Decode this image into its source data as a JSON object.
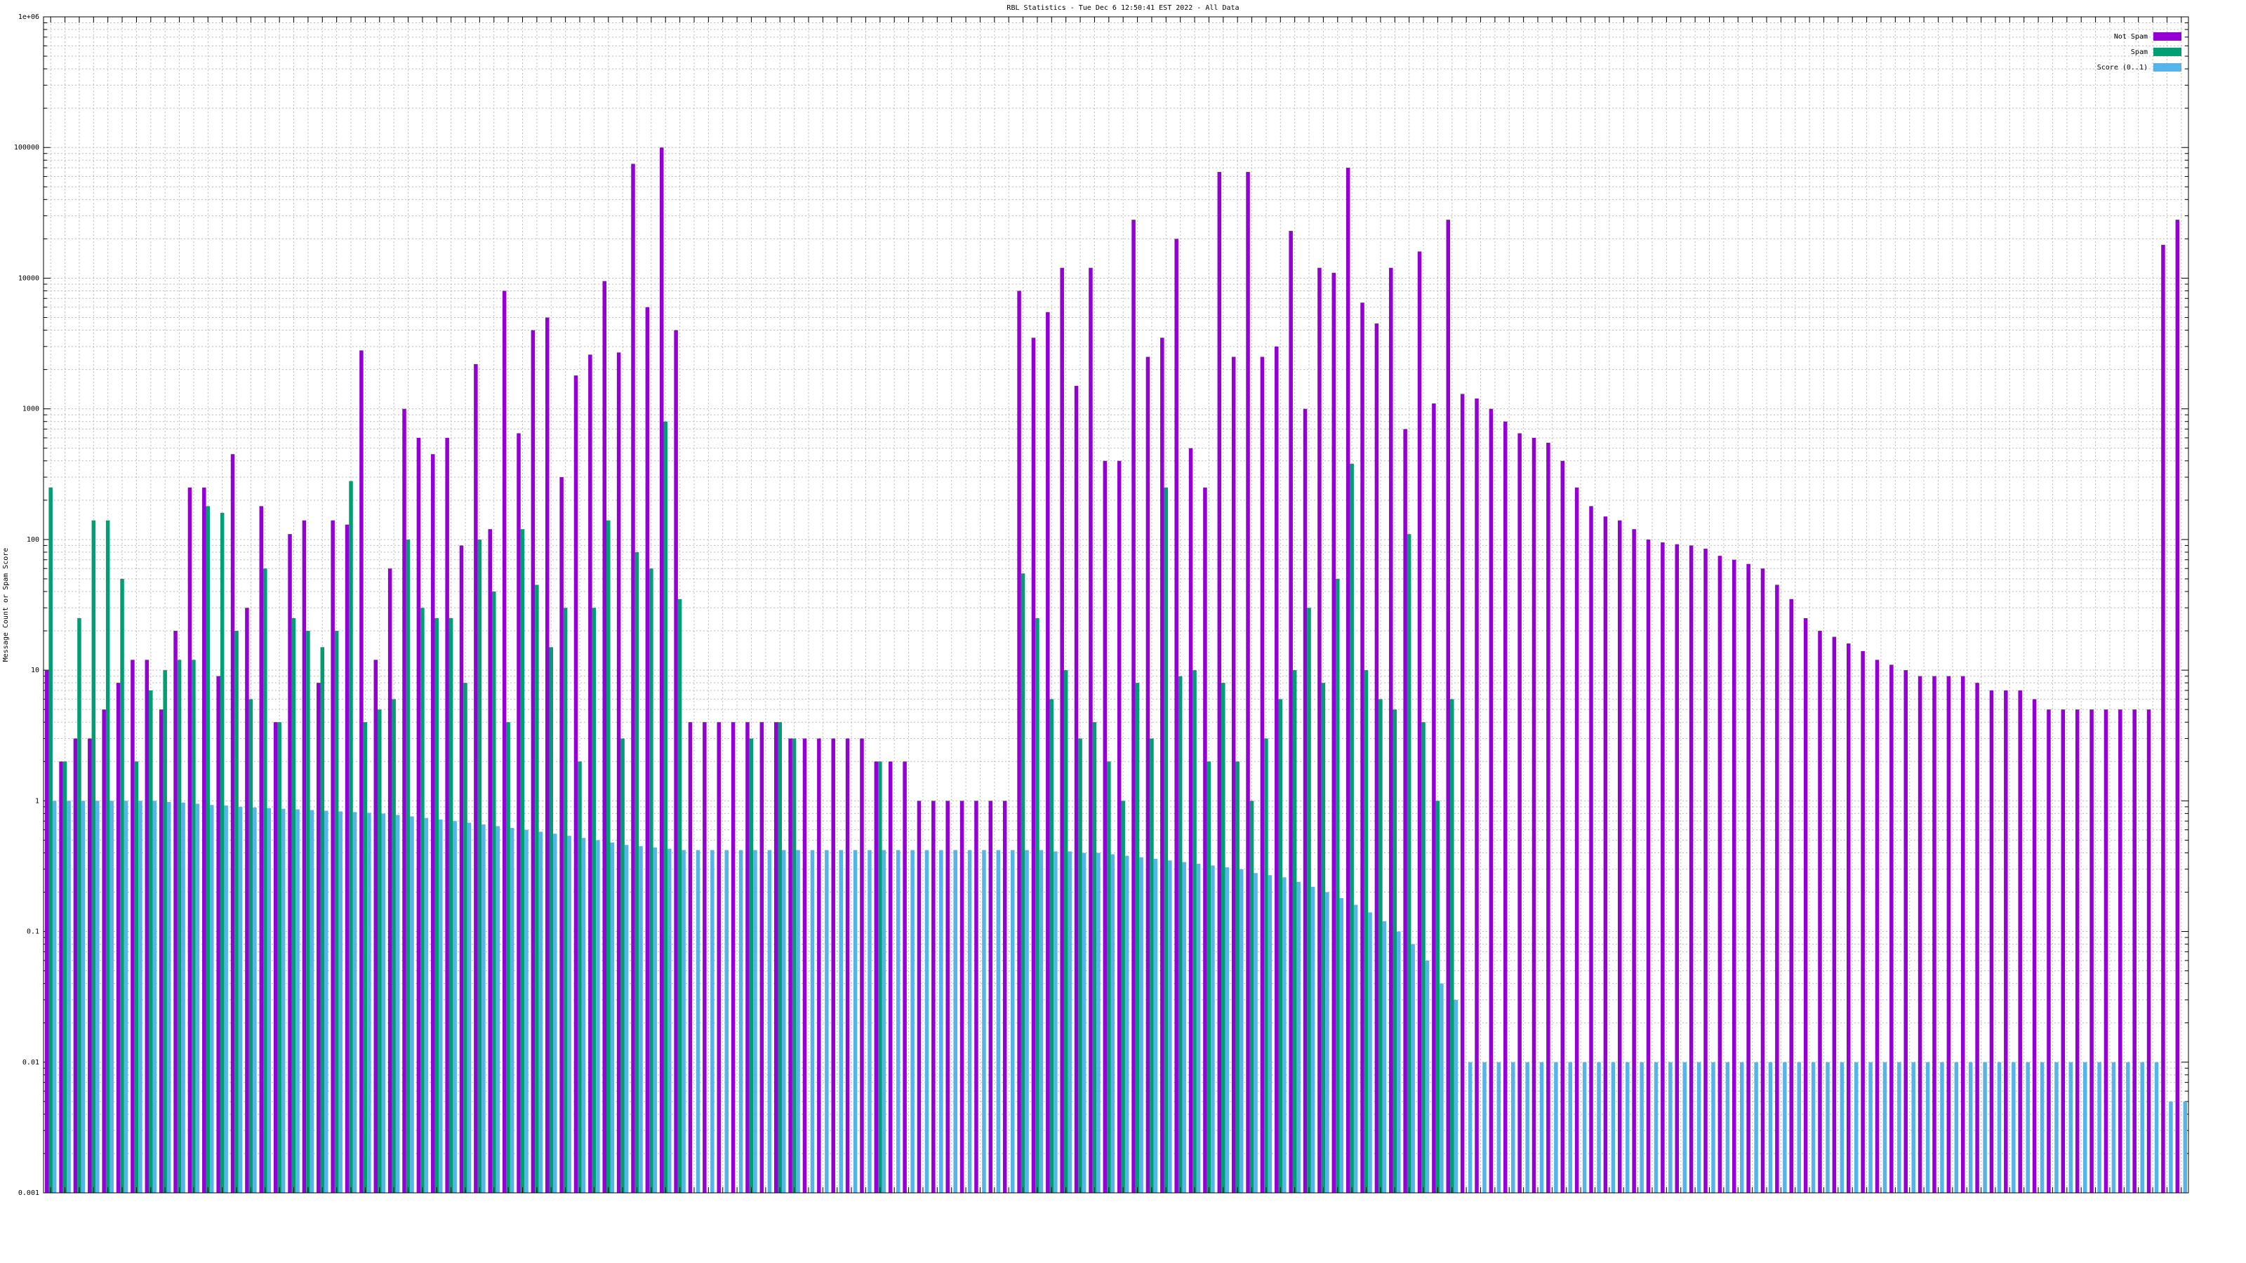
{
  "chart_data": {
    "type": "bar",
    "log_scale": true,
    "grid": true,
    "legend": "upper right",
    "title": "RBL Statistics - Tue Dec  6 12:50:41 EST 2022 - All Data",
    "y_label": "Message Count or Spam Score",
    "ylim": [
      0.001,
      1000000
    ],
    "yticks": [
      0.001,
      0.01,
      0.1,
      1,
      10,
      100,
      1000,
      10000,
      100000,
      {
        "value": 1000000,
        "label": "1e+06"
      }
    ],
    "categories": [
      null,
      null,
      null,
      null,
      null,
      null,
      null,
      null,
      null,
      null,
      null,
      null,
      null,
      null,
      null,
      null,
      null,
      null,
      null,
      null,
      null,
      null,
      null,
      null,
      null,
      null,
      null,
      null,
      null,
      null,
      null,
      null,
      null,
      null,
      null,
      null,
      null,
      null,
      null,
      null,
      null,
      null,
      null,
      null,
      null,
      null,
      null,
      null,
      null,
      null,
      null,
      null,
      null,
      null,
      null,
      null,
      null,
      null,
      null,
      null,
      null,
      null,
      null,
      null,
      null,
      null,
      null,
      null,
      null,
      null,
      null,
      null,
      null,
      null,
      null,
      null,
      null,
      null,
      null,
      null,
      null,
      null,
      null,
      null,
      null,
      null,
      null,
      null,
      null,
      null,
      null,
      null,
      null,
      null,
      null,
      null,
      null,
      null,
      null,
      null,
      null,
      null,
      null,
      null,
      null,
      null,
      null,
      null,
      null,
      null,
      null,
      null,
      null,
      null,
      null,
      null,
      null,
      null,
      null,
      null,
      null,
      null,
      null,
      null,
      null,
      null,
      null,
      null,
      null,
      null,
      null,
      null,
      null,
      null,
      null,
      null,
      null,
      null,
      null,
      null,
      null,
      null,
      null,
      null,
      null,
      null,
      null,
      null,
      null,
      null
    ],
    "series": [
      {
        "name": "Not Spam",
        "color": "#9400d3",
        "values": [
          10,
          2,
          3,
          3,
          5,
          8,
          12,
          12,
          5,
          20,
          250,
          250,
          9,
          450,
          30,
          180,
          4,
          110,
          140,
          8,
          140,
          130,
          2800,
          12,
          60,
          1000,
          600,
          450,
          600,
          90,
          2200,
          120,
          8000,
          650,
          4000,
          5000,
          300,
          1800,
          2600,
          9500,
          2700,
          75000,
          6000,
          100000,
          4000,
          4,
          4,
          4,
          4,
          4,
          4,
          4,
          3,
          3,
          3,
          3,
          3,
          3,
          2,
          2,
          2,
          1,
          1,
          1,
          1,
          1,
          1,
          1,
          8000,
          3500,
          5500,
          12000,
          1500,
          12000,
          400,
          400,
          28000,
          2500,
          3500,
          20000,
          500,
          250,
          65000,
          2500,
          65000,
          2500,
          3000,
          23000,
          1000,
          12000,
          11000,
          70000,
          6500,
          4500,
          12000,
          700,
          16000,
          1100,
          28000,
          1300,
          1200,
          1000,
          800,
          650,
          600,
          550,
          400,
          250,
          180,
          150,
          140,
          120,
          100,
          95,
          92,
          90,
          85,
          75,
          70,
          65,
          60,
          45,
          35,
          25,
          20,
          18,
          16,
          14,
          12,
          11,
          10,
          9,
          9,
          9,
          9,
          8,
          7,
          7,
          7,
          6,
          5,
          5,
          5,
          5,
          5,
          5,
          5,
          5,
          18000,
          28000
        ]
      },
      {
        "name": "Spam",
        "color": "#009e73",
        "values": [
          250,
          2,
          25,
          140,
          140,
          50,
          2,
          7,
          10,
          12,
          12,
          180,
          160,
          20,
          6,
          60,
          4,
          25,
          20,
          15,
          20,
          280,
          4,
          5,
          6,
          100,
          30,
          25,
          25,
          8,
          100,
          40,
          4,
          120,
          45,
          15,
          30,
          2,
          30,
          140,
          3,
          80,
          60,
          800,
          35,
          null,
          null,
          null,
          null,
          3,
          null,
          4,
          3,
          null,
          null,
          null,
          null,
          null,
          2,
          null,
          null,
          null,
          null,
          null,
          null,
          null,
          null,
          null,
          55,
          25,
          6,
          10,
          3,
          4,
          2,
          1,
          8,
          3,
          250,
          9,
          10,
          2,
          8,
          2,
          1,
          3,
          6,
          10,
          30,
          8,
          50,
          380,
          10,
          6,
          5,
          110,
          4,
          1,
          6,
          null,
          null,
          null,
          null,
          null,
          null,
          null,
          null,
          null,
          null,
          null,
          null,
          null,
          null,
          null,
          null,
          null,
          null,
          null,
          null,
          null,
          null,
          null,
          null,
          null,
          null,
          null,
          null,
          null,
          null,
          null,
          null,
          null,
          null,
          null,
          null,
          null,
          null,
          null,
          null,
          null,
          null,
          null,
          null,
          null,
          null,
          null,
          null,
          null,
          null,
          null
        ]
      },
      {
        "name": "Score (0..1)",
        "color": "#56b4e9",
        "values": [
          1,
          1,
          1,
          1,
          1,
          1,
          1,
          1,
          0.98,
          0.97,
          0.95,
          0.93,
          0.92,
          0.9,
          0.89,
          0.88,
          0.87,
          0.86,
          0.85,
          0.84,
          0.83,
          0.82,
          0.81,
          0.8,
          0.78,
          0.76,
          0.74,
          0.72,
          0.7,
          0.68,
          0.66,
          0.64,
          0.62,
          0.6,
          0.58,
          0.56,
          0.54,
          0.52,
          0.5,
          0.48,
          0.46,
          0.45,
          0.44,
          0.43,
          0.42,
          0.42,
          0.42,
          0.42,
          0.42,
          0.42,
          0.42,
          0.42,
          0.42,
          0.42,
          0.42,
          0.42,
          0.42,
          0.42,
          0.42,
          0.42,
          0.42,
          0.42,
          0.42,
          0.42,
          0.42,
          0.42,
          0.42,
          0.42,
          0.42,
          0.42,
          0.41,
          0.41,
          0.4,
          0.4,
          0.39,
          0.38,
          0.37,
          0.36,
          0.35,
          0.34,
          0.33,
          0.32,
          0.31,
          0.3,
          0.28,
          0.27,
          0.26,
          0.24,
          0.22,
          0.2,
          0.18,
          0.16,
          0.14,
          0.12,
          0.1,
          0.08,
          0.06,
          0.04,
          0.03,
          0.01,
          0.01,
          0.01,
          0.01,
          0.01,
          0.01,
          0.01,
          0.01,
          0.01,
          0.01,
          0.01,
          0.01,
          0.01,
          0.01,
          0.01,
          0.01,
          0.01,
          0.01,
          0.01,
          0.01,
          0.01,
          0.01,
          0.01,
          0.01,
          0.01,
          0.01,
          0.01,
          0.01,
          0.01,
          0.01,
          0.01,
          0.01,
          0.01,
          0.01,
          0.01,
          0.01,
          0.01,
          0.01,
          0.01,
          0.01,
          0.01,
          0.01,
          0.01,
          0.01,
          0.01,
          0.01,
          0.01,
          0.01,
          0.01,
          0.005,
          0.005
        ]
      }
    ]
  }
}
